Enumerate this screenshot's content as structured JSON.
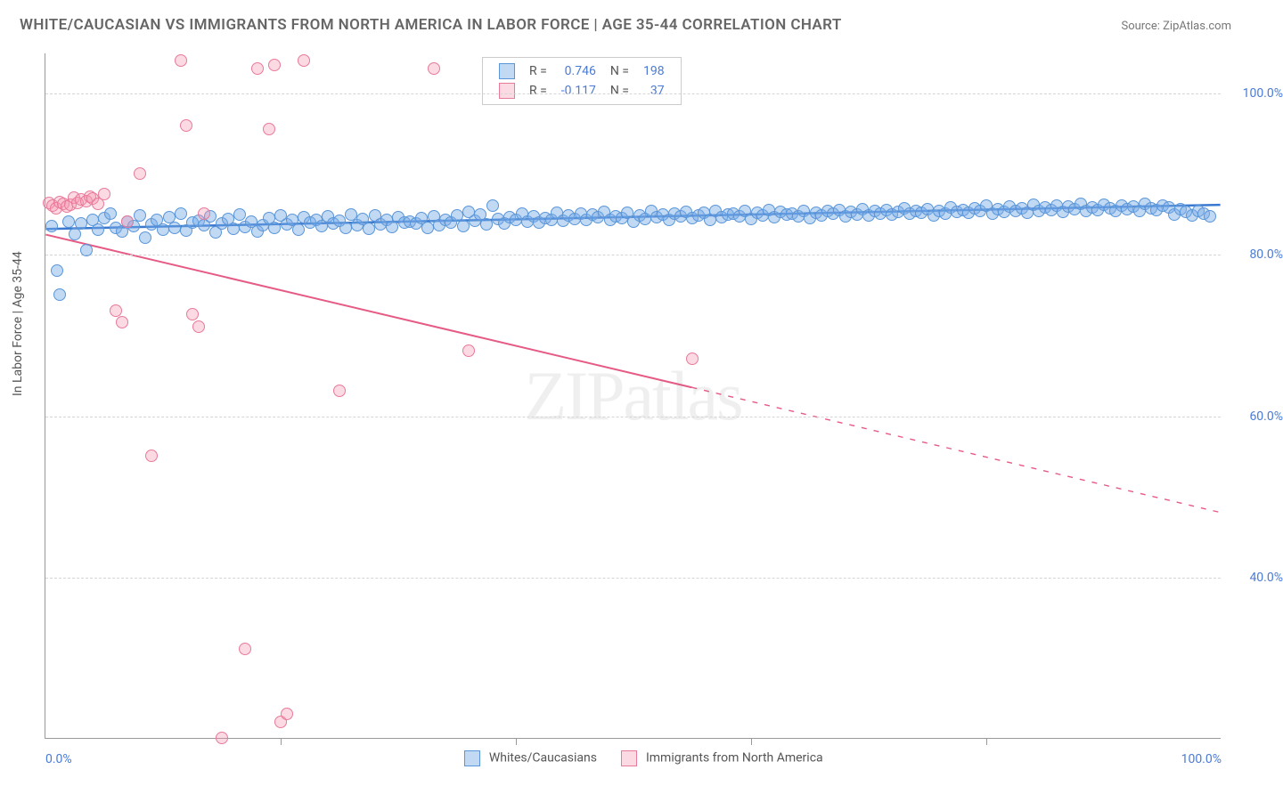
{
  "title": "WHITE/CAUCASIAN VS IMMIGRANTS FROM NORTH AMERICA IN LABOR FORCE | AGE 35-44 CORRELATION CHART",
  "source": "Source: ZipAtlas.com",
  "ylabel": "In Labor Force | Age 35-44",
  "watermark": "ZIPatlas",
  "chart": {
    "type": "scatter",
    "xlim": [
      0,
      100
    ],
    "ylim": [
      20,
      105
    ],
    "yticks": [
      40,
      60,
      80,
      100
    ],
    "ytick_labels": [
      "40.0%",
      "60.0%",
      "80.0%",
      "100.0%"
    ],
    "x_corner_labels": [
      "0.0%",
      "100.0%"
    ],
    "xtick_minor": [
      20,
      40,
      60,
      80
    ],
    "grid_color": "#d5d5d5",
    "axis_color": "#999999",
    "background_color": "#ffffff",
    "tick_label_color": "#4a7bd6",
    "series": [
      {
        "name": "Whites/Caucasians",
        "label": "Whites/Caucasians",
        "marker_fill": "rgba(120,170,230,0.45)",
        "marker_stroke": "#5a96d8",
        "marker_radius": 7,
        "trend_color": "#3a79d0",
        "trend_width": 2.5,
        "trend_solid_end": 100,
        "R": "0.746",
        "N": "198",
        "trend": {
          "x1": 0,
          "y1": 83.2,
          "x2": 100,
          "y2": 86.2
        },
        "points": [
          [
            0.5,
            83.5
          ],
          [
            1.0,
            78.0
          ],
          [
            1.2,
            75.0
          ],
          [
            2.0,
            84.0
          ],
          [
            2.5,
            82.5
          ],
          [
            3.0,
            83.8
          ],
          [
            3.5,
            80.5
          ],
          [
            4.0,
            84.2
          ],
          [
            4.5,
            83.0
          ],
          [
            5.0,
            84.5
          ],
          [
            5.5,
            85.0
          ],
          [
            6.0,
            83.2
          ],
          [
            6.5,
            82.8
          ],
          [
            7.0,
            84.0
          ],
          [
            7.5,
            83.5
          ],
          [
            8.0,
            84.8
          ],
          [
            8.5,
            82.0
          ],
          [
            9.0,
            83.7
          ],
          [
            9.5,
            84.3
          ],
          [
            10.0,
            83.0
          ],
          [
            10.5,
            84.6
          ],
          [
            11.0,
            83.3
          ],
          [
            11.5,
            85.0
          ],
          [
            12.0,
            82.9
          ],
          [
            12.5,
            83.9
          ],
          [
            13.0,
            84.1
          ],
          [
            13.5,
            83.6
          ],
          [
            14.0,
            84.7
          ],
          [
            14.5,
            82.7
          ],
          [
            15.0,
            83.8
          ],
          [
            15.5,
            84.4
          ],
          [
            16.0,
            83.1
          ],
          [
            16.5,
            84.9
          ],
          [
            17.0,
            83.4
          ],
          [
            17.5,
            84.0
          ],
          [
            18.0,
            82.8
          ],
          [
            18.5,
            83.6
          ],
          [
            19.0,
            84.5
          ],
          [
            19.5,
            83.2
          ],
          [
            20.0,
            84.8
          ],
          [
            20.5,
            83.7
          ],
          [
            21.0,
            84.2
          ],
          [
            21.5,
            83.0
          ],
          [
            22.0,
            84.6
          ],
          [
            22.5,
            83.9
          ],
          [
            23.0,
            84.3
          ],
          [
            23.5,
            83.5
          ],
          [
            24.0,
            84.7
          ],
          [
            24.5,
            83.8
          ],
          [
            25.0,
            84.1
          ],
          [
            25.5,
            83.3
          ],
          [
            26.0,
            84.9
          ],
          [
            26.5,
            83.6
          ],
          [
            27.0,
            84.4
          ],
          [
            27.5,
            83.1
          ],
          [
            28.0,
            84.8
          ],
          [
            28.5,
            83.7
          ],
          [
            29.0,
            84.2
          ],
          [
            29.5,
            83.4
          ],
          [
            30.0,
            84.6
          ],
          [
            30.5,
            83.9
          ],
          [
            31.0,
            84.0
          ],
          [
            31.5,
            83.8
          ],
          [
            32.0,
            84.5
          ],
          [
            32.5,
            83.2
          ],
          [
            33.0,
            84.7
          ],
          [
            33.5,
            83.6
          ],
          [
            34.0,
            84.3
          ],
          [
            34.5,
            83.9
          ],
          [
            35.0,
            84.8
          ],
          [
            35.5,
            83.5
          ],
          [
            36.0,
            85.2
          ],
          [
            36.5,
            84.1
          ],
          [
            37.0,
            84.9
          ],
          [
            37.5,
            83.7
          ],
          [
            38.0,
            86.0
          ],
          [
            38.5,
            84.4
          ],
          [
            39.0,
            83.8
          ],
          [
            39.5,
            84.6
          ],
          [
            40.0,
            84.2
          ],
          [
            40.5,
            85.0
          ],
          [
            41.0,
            84.0
          ],
          [
            41.5,
            84.7
          ],
          [
            42.0,
            83.9
          ],
          [
            42.5,
            84.5
          ],
          [
            43.0,
            84.3
          ],
          [
            43.5,
            85.1
          ],
          [
            44.0,
            84.1
          ],
          [
            44.5,
            84.8
          ],
          [
            45.0,
            84.4
          ],
          [
            45.5,
            85.0
          ],
          [
            46.0,
            84.2
          ],
          [
            46.5,
            84.9
          ],
          [
            47.0,
            84.6
          ],
          [
            47.5,
            85.2
          ],
          [
            48.0,
            84.3
          ],
          [
            48.5,
            84.7
          ],
          [
            49.0,
            84.5
          ],
          [
            49.5,
            85.1
          ],
          [
            50.0,
            84.0
          ],
          [
            50.5,
            84.8
          ],
          [
            51.0,
            84.4
          ],
          [
            51.5,
            85.3
          ],
          [
            52.0,
            84.6
          ],
          [
            52.5,
            84.9
          ],
          [
            53.0,
            84.2
          ],
          [
            53.5,
            85.0
          ],
          [
            54.0,
            84.7
          ],
          [
            54.5,
            85.2
          ],
          [
            55.0,
            84.5
          ],
          [
            55.5,
            84.8
          ],
          [
            56.0,
            85.1
          ],
          [
            56.5,
            84.3
          ],
          [
            57.0,
            85.4
          ],
          [
            57.5,
            84.6
          ],
          [
            58.0,
            84.9
          ],
          [
            58.5,
            85.0
          ],
          [
            59.0,
            84.7
          ],
          [
            59.5,
            85.3
          ],
          [
            60.0,
            84.4
          ],
          [
            60.5,
            85.1
          ],
          [
            61.0,
            84.8
          ],
          [
            61.5,
            85.5
          ],
          [
            62.0,
            84.6
          ],
          [
            62.5,
            85.2
          ],
          [
            63.0,
            84.9
          ],
          [
            63.5,
            85.0
          ],
          [
            64.0,
            84.7
          ],
          [
            64.5,
            85.4
          ],
          [
            65.0,
            84.5
          ],
          [
            65.5,
            85.1
          ],
          [
            66.0,
            84.8
          ],
          [
            66.5,
            85.3
          ],
          [
            67.0,
            85.0
          ],
          [
            67.5,
            85.5
          ],
          [
            68.0,
            84.7
          ],
          [
            68.5,
            85.2
          ],
          [
            69.0,
            84.9
          ],
          [
            69.5,
            85.6
          ],
          [
            70.0,
            84.8
          ],
          [
            70.5,
            85.3
          ],
          [
            71.0,
            85.0
          ],
          [
            71.5,
            85.5
          ],
          [
            72.0,
            84.9
          ],
          [
            72.5,
            85.2
          ],
          [
            73.0,
            85.7
          ],
          [
            73.5,
            85.0
          ],
          [
            74.0,
            85.4
          ],
          [
            74.5,
            85.1
          ],
          [
            75.0,
            85.6
          ],
          [
            75.5,
            84.8
          ],
          [
            76.0,
            85.3
          ],
          [
            76.5,
            85.0
          ],
          [
            77.0,
            85.8
          ],
          [
            77.5,
            85.2
          ],
          [
            78.0,
            85.5
          ],
          [
            78.5,
            85.1
          ],
          [
            79.0,
            85.7
          ],
          [
            79.5,
            85.3
          ],
          [
            80.0,
            86.0
          ],
          [
            80.5,
            85.0
          ],
          [
            81.0,
            85.6
          ],
          [
            81.5,
            85.2
          ],
          [
            82.0,
            85.9
          ],
          [
            82.5,
            85.4
          ],
          [
            83.0,
            85.7
          ],
          [
            83.5,
            85.1
          ],
          [
            84.0,
            86.1
          ],
          [
            84.5,
            85.3
          ],
          [
            85.0,
            85.8
          ],
          [
            85.5,
            85.5
          ],
          [
            86.0,
            86.0
          ],
          [
            86.5,
            85.2
          ],
          [
            87.0,
            85.9
          ],
          [
            87.5,
            85.6
          ],
          [
            88.0,
            86.2
          ],
          [
            88.5,
            85.4
          ],
          [
            89.0,
            85.8
          ],
          [
            89.5,
            85.5
          ],
          [
            90.0,
            86.1
          ],
          [
            90.5,
            85.7
          ],
          [
            91.0,
            85.3
          ],
          [
            91.5,
            86.0
          ],
          [
            92.0,
            85.6
          ],
          [
            92.5,
            85.9
          ],
          [
            93.0,
            85.4
          ],
          [
            93.5,
            86.2
          ],
          [
            94.0,
            85.7
          ],
          [
            94.5,
            85.5
          ],
          [
            95.0,
            86.0
          ],
          [
            95.5,
            85.8
          ],
          [
            96.0,
            84.9
          ],
          [
            96.5,
            85.6
          ],
          [
            97.0,
            85.2
          ],
          [
            97.5,
            84.8
          ],
          [
            98.0,
            85.4
          ],
          [
            98.5,
            85.0
          ],
          [
            99.0,
            84.7
          ]
        ]
      },
      {
        "name": "Immigrants from North America",
        "label": "Immigrants from North America",
        "marker_fill": "rgba(245,150,175,0.35)",
        "marker_stroke": "#e87a9a",
        "marker_radius": 7,
        "trend_color": "#e65b85",
        "trend_width": 2,
        "trend_solid_end": 55,
        "R": "-0.117",
        "N": "37",
        "trend": {
          "x1": 0,
          "y1": 82.5,
          "x2": 100,
          "y2": 48.0
        },
        "points": [
          [
            0.3,
            86.3
          ],
          [
            0.6,
            86.0
          ],
          [
            0.9,
            85.7
          ],
          [
            1.2,
            86.5
          ],
          [
            1.5,
            86.2
          ],
          [
            1.8,
            85.9
          ],
          [
            2.1,
            86.1
          ],
          [
            2.4,
            87.0
          ],
          [
            2.7,
            86.4
          ],
          [
            3.0,
            86.8
          ],
          [
            3.5,
            86.6
          ],
          [
            3.8,
            87.1
          ],
          [
            4.0,
            86.9
          ],
          [
            4.5,
            86.2
          ],
          [
            5.0,
            87.5
          ],
          [
            6.0,
            73.0
          ],
          [
            6.5,
            71.5
          ],
          [
            7.0,
            84.0
          ],
          [
            8.0,
            90.0
          ],
          [
            9.0,
            55.0
          ],
          [
            11.5,
            104.0
          ],
          [
            12.0,
            96.0
          ],
          [
            12.5,
            72.5
          ],
          [
            13.0,
            71.0
          ],
          [
            13.5,
            85.0
          ],
          [
            15.0,
            20.0
          ],
          [
            17.0,
            31.0
          ],
          [
            18.0,
            103.0
          ],
          [
            19.0,
            95.5
          ],
          [
            19.5,
            103.5
          ],
          [
            20.0,
            22.0
          ],
          [
            20.5,
            23.0
          ],
          [
            22.0,
            104.0
          ],
          [
            25.0,
            63.0
          ],
          [
            33.0,
            103.0
          ],
          [
            36.0,
            68.0
          ],
          [
            55.0,
            67.0
          ]
        ]
      }
    ]
  },
  "stats_legend": {
    "r_label": "R =",
    "n_label": "N ="
  }
}
